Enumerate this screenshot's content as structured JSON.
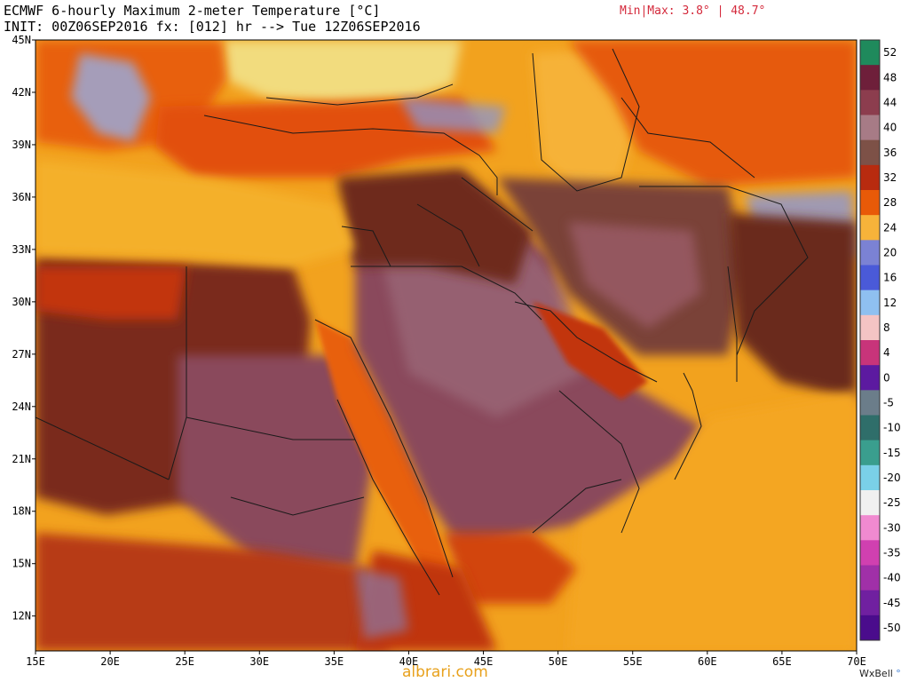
{
  "header": {
    "title_line1": "ECMWF 6-hourly Maximum 2-meter Temperature [°C]",
    "title_line2": "INIT: 00Z06SEP2016 fx: [012] hr --> Tue 12Z06SEP2016",
    "minmax": "Min|Max: 3.8° | 48.7°"
  },
  "map": {
    "lat_labels": [
      "45N",
      "42N",
      "39N",
      "36N",
      "33N",
      "30N",
      "27N",
      "24N",
      "21N",
      "18N",
      "15N",
      "12N"
    ],
    "lat_values": [
      45,
      42,
      39,
      36,
      33,
      30,
      27,
      24,
      21,
      18,
      15,
      12
    ],
    "lon_labels": [
      "15E",
      "20E",
      "25E",
      "30E",
      "35E",
      "40E",
      "45E",
      "50E",
      "55E",
      "60E",
      "65E",
      "70E"
    ],
    "lon_values": [
      15,
      20,
      25,
      30,
      35,
      40,
      45,
      50,
      55,
      60,
      65,
      70
    ],
    "extent": {
      "lon_min": 15,
      "lon_max": 70,
      "lat_min": 10,
      "lat_max": 45
    }
  },
  "colorbar": {
    "labels": [
      "52",
      "48",
      "44",
      "40",
      "36",
      "32",
      "28",
      "24",
      "20",
      "16",
      "12",
      "8",
      "4",
      "0",
      "-5",
      "-10",
      "-15",
      "-20",
      "-25",
      "-30",
      "-35",
      "-40",
      "-45",
      "-50"
    ],
    "colors": [
      "#1f8a5c",
      "#6e1f3a",
      "#8c3d4e",
      "#a77b86",
      "#7d5147",
      "#b82b0f",
      "#e85a08",
      "#f7b33a",
      "#7b82d4",
      "#4a5ad8",
      "#8fc0f0",
      "#f4c4c4",
      "#c8347a",
      "#5c1aa0",
      "#6b7d8a",
      "#2f6e6a",
      "#3a9e8e",
      "#7ad0e8",
      "#f0f0f0",
      "#f08ad0",
      "#d040b0",
      "#a030a8",
      "#7020a0",
      "#4a0c8c"
    ]
  },
  "footer": {
    "watermark": "albrari.com",
    "brand": "WxBell"
  },
  "palette": {
    "sea": "#f4a020",
    "desert": "#8a4a5c",
    "hot": "#7a2c1e",
    "warm": "#e8560c",
    "cool": "#f2dc7e",
    "mountain": "#9aa8d8",
    "border": "#1a1a1a"
  }
}
